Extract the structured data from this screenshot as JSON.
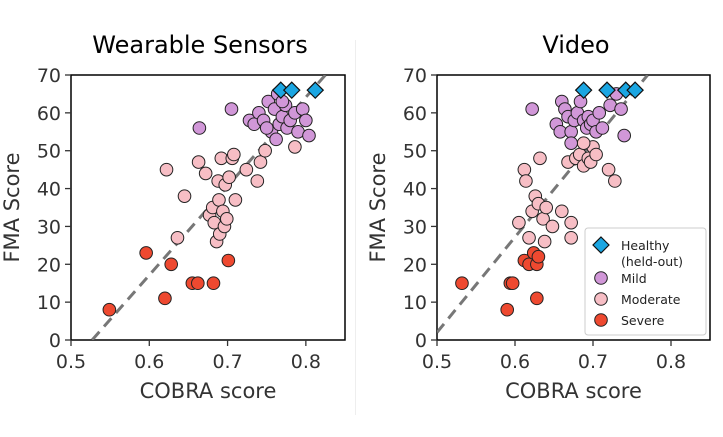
{
  "chart_data": [
    {
      "type": "scatter",
      "title": "Wearable Sensors",
      "xlabel": "COBRA score",
      "ylabel": "FMA Score",
      "xlim": [
        0.5,
        0.85
      ],
      "ylim": [
        0,
        70
      ],
      "xticks": [
        "0.5",
        "0.6",
        "0.7",
        "0.8"
      ],
      "yticks": [
        "0",
        "10",
        "20",
        "30",
        "40",
        "50",
        "60",
        "70"
      ],
      "grid": false,
      "legend": false,
      "reference_line": {
        "style": "dashed",
        "color": "#777777",
        "points": [
          [
            0.527,
            0
          ],
          [
            0.825,
            70
          ]
        ]
      },
      "series": [
        {
          "name": "Healthy (held-out)",
          "marker": "diamond",
          "color": "#1BA6E2",
          "points": [
            [
              0.768,
              66
            ],
            [
              0.782,
              66
            ],
            [
              0.812,
              66
            ]
          ]
        },
        {
          "name": "Mild",
          "marker": "circle",
          "color": "#D197D8",
          "points": [
            [
              0.664,
              56
            ],
            [
              0.705,
              61
            ],
            [
              0.728,
              58
            ],
            [
              0.734,
              57
            ],
            [
              0.74,
              60
            ],
            [
              0.746,
              58
            ],
            [
              0.752,
              63
            ],
            [
              0.756,
              55
            ],
            [
              0.76,
              61
            ],
            [
              0.762,
              53
            ],
            [
              0.766,
              57
            ],
            [
              0.77,
              59
            ],
            [
              0.774,
              62
            ],
            [
              0.776,
              56
            ],
            [
              0.78,
              58
            ],
            [
              0.786,
              60
            ],
            [
              0.79,
              55
            ],
            [
              0.796,
              61
            ],
            [
              0.8,
              58
            ],
            [
              0.804,
              54
            ],
            [
              0.764,
              65
            ],
            [
              0.77,
              63
            ],
            [
              0.75,
              56
            ]
          ]
        },
        {
          "name": "Moderate",
          "marker": "circle",
          "color": "#F7BEC5",
          "points": [
            [
              0.622,
              45
            ],
            [
              0.636,
              27
            ],
            [
              0.645,
              38
            ],
            [
              0.663,
              47
            ],
            [
              0.672,
              44
            ],
            [
              0.677,
              33
            ],
            [
              0.681,
              35
            ],
            [
              0.683,
              31
            ],
            [
              0.686,
              26
            ],
            [
              0.688,
              42
            ],
            [
              0.689,
              37
            ],
            [
              0.69,
              28
            ],
            [
              0.692,
              48
            ],
            [
              0.694,
              34
            ],
            [
              0.696,
              30
            ],
            [
              0.697,
              41
            ],
            [
              0.699,
              32
            ],
            [
              0.702,
              43
            ],
            [
              0.706,
              48
            ],
            [
              0.708,
              49
            ],
            [
              0.71,
              37
            ],
            [
              0.724,
              45
            ],
            [
              0.738,
              42
            ],
            [
              0.742,
              47
            ],
            [
              0.748,
              50
            ],
            [
              0.786,
              51
            ]
          ]
        },
        {
          "name": "Severe",
          "marker": "circle",
          "color": "#EE4930",
          "points": [
            [
              0.549,
              8
            ],
            [
              0.596,
              23
            ],
            [
              0.62,
              11
            ],
            [
              0.628,
              20
            ],
            [
              0.655,
              15
            ],
            [
              0.662,
              15
            ],
            [
              0.682,
              15
            ],
            [
              0.701,
              21
            ]
          ]
        }
      ]
    },
    {
      "type": "scatter",
      "title": "Video",
      "xlabel": "COBRA score",
      "ylabel": "FMA Score",
      "xlim": [
        0.5,
        0.85
      ],
      "ylim": [
        0,
        70
      ],
      "xticks": [
        "0.5",
        "0.6",
        "0.7",
        "0.8"
      ],
      "yticks": [
        "0",
        "10",
        "20",
        "30",
        "40",
        "50",
        "60",
        "70"
      ],
      "grid": false,
      "legend": true,
      "legend_position": "lower-right",
      "reference_line": {
        "style": "dashed",
        "color": "#777777",
        "points": [
          [
            0.5,
            2
          ],
          [
            0.77,
            70
          ]
        ]
      },
      "series": [
        {
          "name": "Healthy\n(held-out)",
          "marker": "diamond",
          "color": "#1BA6E2",
          "points": [
            [
              0.688,
              66
            ],
            [
              0.718,
              66
            ],
            [
              0.742,
              66
            ],
            [
              0.754,
              66
            ]
          ]
        },
        {
          "name": "Mild",
          "marker": "circle",
          "color": "#D197D8",
          "points": [
            [
              0.622,
              61
            ],
            [
              0.653,
              57
            ],
            [
              0.658,
              55
            ],
            [
              0.66,
              63
            ],
            [
              0.664,
              61
            ],
            [
              0.668,
              59
            ],
            [
              0.672,
              55
            ],
            [
              0.676,
              58
            ],
            [
              0.68,
              60
            ],
            [
              0.684,
              63
            ],
            [
              0.688,
              58
            ],
            [
              0.692,
              56
            ],
            [
              0.694,
              59
            ],
            [
              0.697,
              57
            ],
            [
              0.7,
              58
            ],
            [
              0.704,
              55
            ],
            [
              0.708,
              60
            ],
            [
              0.712,
              56
            ],
            [
              0.722,
              62
            ],
            [
              0.73,
              65
            ],
            [
              0.736,
              61
            ],
            [
              0.74,
              54
            ],
            [
              0.672,
              52
            ]
          ]
        },
        {
          "name": "Moderate",
          "marker": "circle",
          "color": "#F7BEC5",
          "points": [
            [
              0.605,
              31
            ],
            [
              0.612,
              45
            ],
            [
              0.614,
              42
            ],
            [
              0.618,
              27
            ],
            [
              0.622,
              34
            ],
            [
              0.626,
              38
            ],
            [
              0.63,
              36
            ],
            [
              0.632,
              48
            ],
            [
              0.636,
              32
            ],
            [
              0.638,
              26
            ],
            [
              0.64,
              35
            ],
            [
              0.648,
              30
            ],
            [
              0.66,
              34
            ],
            [
              0.668,
              47
            ],
            [
              0.672,
              31
            ],
            [
              0.678,
              48
            ],
            [
              0.683,
              49
            ],
            [
              0.688,
              46
            ],
            [
              0.694,
              48
            ],
            [
              0.697,
              47
            ],
            [
              0.7,
              51
            ],
            [
              0.704,
              49
            ],
            [
              0.72,
              45
            ],
            [
              0.728,
              42
            ],
            [
              0.672,
              27
            ],
            [
              0.688,
              52
            ]
          ]
        },
        {
          "name": "Severe",
          "marker": "circle",
          "color": "#EE4930",
          "points": [
            [
              0.532,
              15
            ],
            [
              0.59,
              8
            ],
            [
              0.594,
              15
            ],
            [
              0.597,
              15
            ],
            [
              0.612,
              21
            ],
            [
              0.618,
              20
            ],
            [
              0.624,
              23
            ],
            [
              0.628,
              11
            ],
            [
              0.628,
              20
            ],
            [
              0.63,
              22
            ]
          ]
        }
      ]
    }
  ]
}
